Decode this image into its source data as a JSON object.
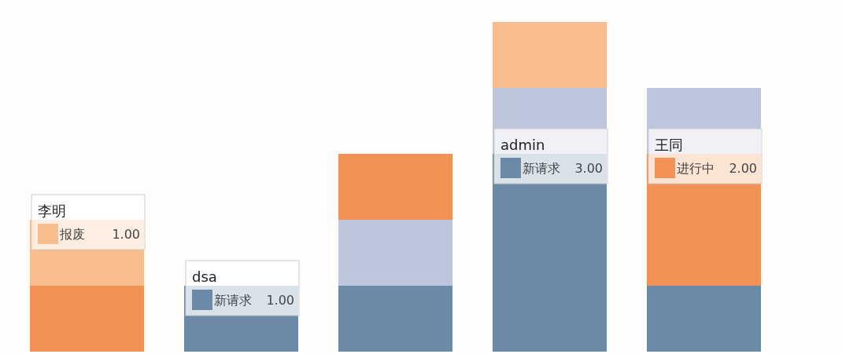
{
  "chart_data": {
    "type": "bar",
    "stacked": true,
    "categories": [
      "李明",
      "dsa",
      null,
      "admin",
      "王同"
    ],
    "series": [
      {
        "name": "新请求",
        "color": "#6a8aa8",
        "values": [
          null,
          1,
          1,
          3,
          1
        ],
        "value_labels": [
          null,
          "1.00",
          null,
          "3.00",
          null
        ]
      },
      {
        "name": "进行中",
        "color": "#f29257",
        "values": [
          1,
          null,
          null,
          null,
          2
        ],
        "value_labels": [
          null,
          null,
          null,
          null,
          "2.00"
        ]
      },
      {
        "color": "#bec6de",
        "values": [
          null,
          null,
          1,
          1,
          1
        ]
      },
      {
        "color": "#f29257",
        "values": [
          null,
          null,
          1,
          null,
          null
        ]
      },
      {
        "name": "报废",
        "color": "#f8bd8f",
        "values": [
          1,
          null,
          null,
          1,
          null
        ],
        "value_labels": [
          "1.00",
          null,
          null,
          null,
          null
        ]
      }
    ],
    "legend": "bottom left"
  }
}
